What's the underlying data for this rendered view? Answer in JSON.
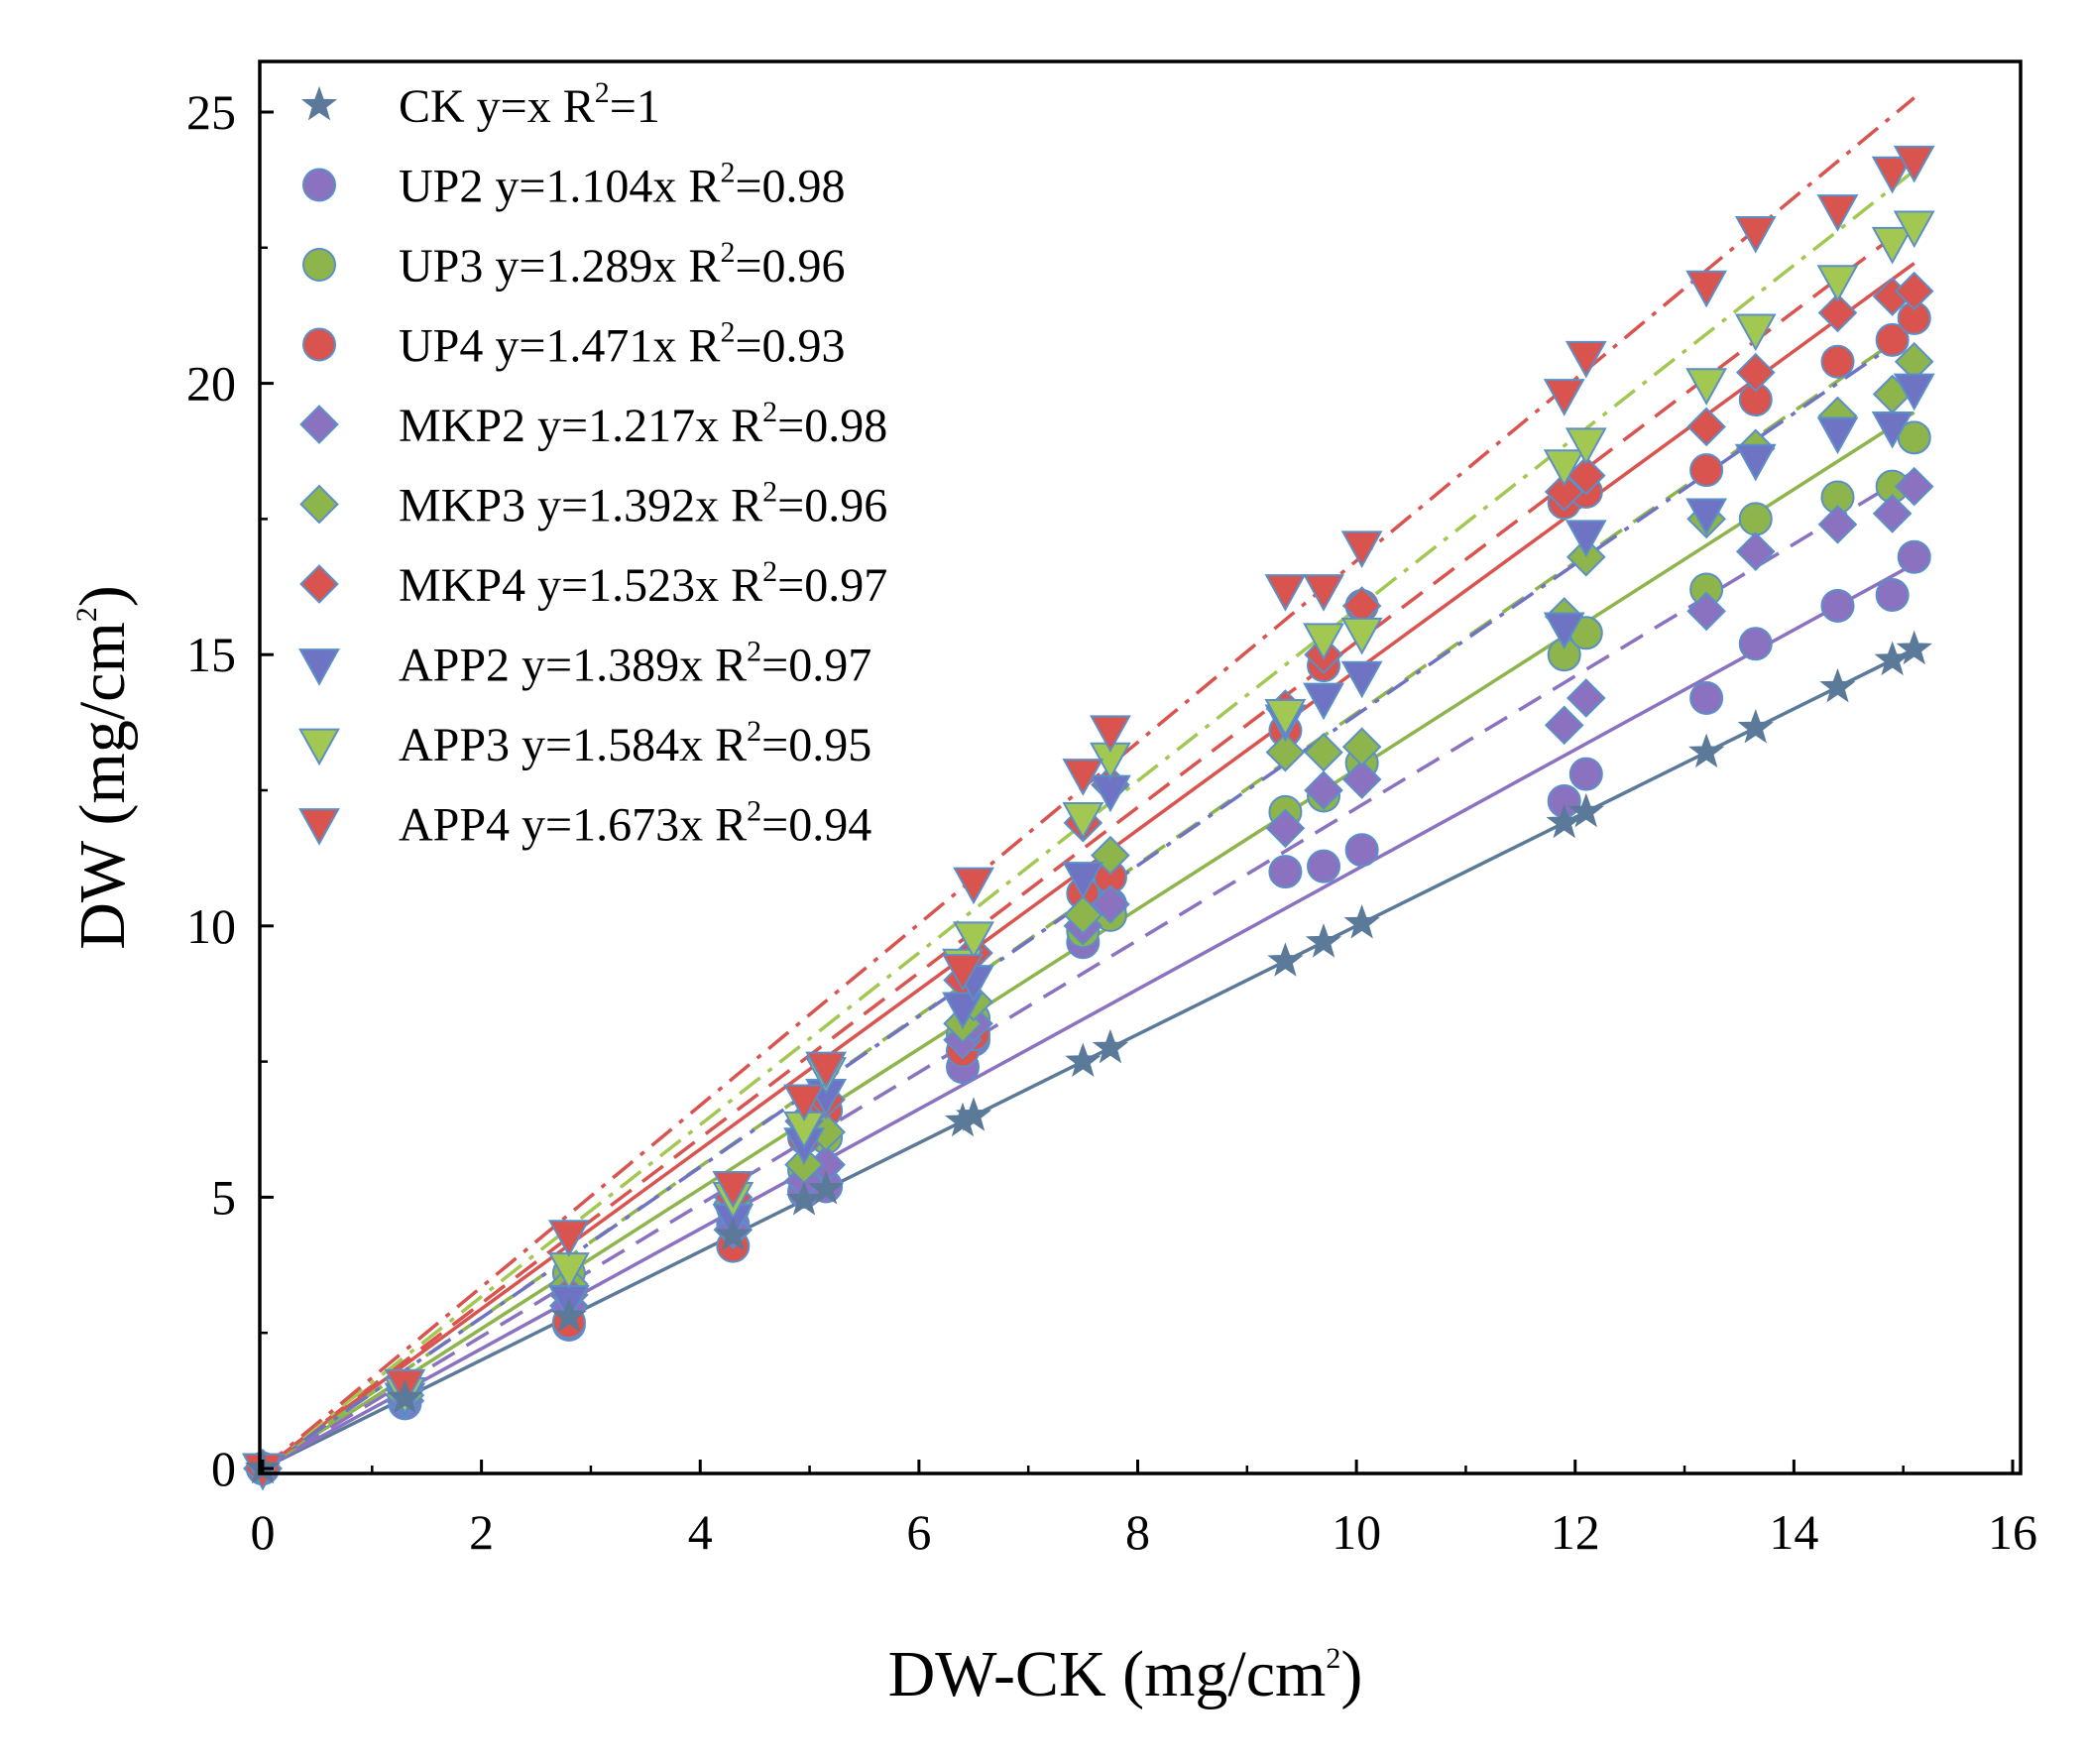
{
  "chart_data": {
    "type": "scatter",
    "xlabel": {
      "main": "DW-CK (mg/cm",
      "sup": "2",
      "end": ")"
    },
    "ylabel": {
      "main": "DW (mg/cm",
      "sup": "2",
      "end": ")"
    },
    "xlim": [
      0,
      16
    ],
    "ylim": [
      0,
      26
    ],
    "xticks": [
      "0",
      "2",
      "4",
      "6",
      "8",
      "10",
      "12",
      "14",
      "16"
    ],
    "yticks": [
      "0",
      "5",
      "10",
      "15",
      "20",
      "25"
    ],
    "legend_position": "top-left",
    "x": [
      0,
      1.3,
      2.8,
      4.3,
      4.95,
      5.15,
      6.4,
      6.5,
      7.5,
      7.75,
      9.35,
      9.7,
      10.05,
      11.9,
      12.1,
      13.2,
      13.65,
      14.4,
      14.9,
      15.1
    ],
    "series": [
      {
        "name": "CK",
        "eq": "y=x",
        "r2": "1",
        "slope": 1.0,
        "color": "#5b7a9a",
        "marker": "star",
        "line": "solid",
        "values": [
          0,
          1.3,
          2.8,
          4.3,
          4.95,
          5.15,
          6.4,
          6.5,
          7.5,
          7.75,
          9.35,
          9.7,
          10.05,
          11.9,
          12.1,
          13.2,
          13.65,
          14.4,
          14.9,
          15.1
        ]
      },
      {
        "name": "UP2",
        "eq": "y=1.104x",
        "r2": "0.98",
        "slope": 1.104,
        "color": "#8b72c0",
        "marker": "circle",
        "line": "solid",
        "values": [
          0,
          1.2,
          2.65,
          4.5,
          5.1,
          5.2,
          7.4,
          7.9,
          9.7,
          10.4,
          11.0,
          11.1,
          11.4,
          12.3,
          12.8,
          14.2,
          15.2,
          15.9,
          16.1,
          16.8
        ]
      },
      {
        "name": "UP3",
        "eq": "y=1.289x",
        "r2": "0.96",
        "slope": 1.289,
        "color": "#8db54b",
        "marker": "circle",
        "line": "solid",
        "values": [
          0,
          1.3,
          3.6,
          4.8,
          5.5,
          6.1,
          8.0,
          8.3,
          9.9,
          10.2,
          12.1,
          12.4,
          13.0,
          15.0,
          15.4,
          16.2,
          17.5,
          17.9,
          18.1,
          19.0
        ]
      },
      {
        "name": "UP4",
        "eq": "y=1.471x",
        "r2": "0.93",
        "slope": 1.471,
        "color": "#d9534f",
        "marker": "circle",
        "line": "solid",
        "values": [
          0,
          1.4,
          2.7,
          4.1,
          6.1,
          6.6,
          7.7,
          8.0,
          10.6,
          10.9,
          13.6,
          14.8,
          15.9,
          17.8,
          18.0,
          18.4,
          19.7,
          20.4,
          20.8,
          21.2
        ]
      },
      {
        "name": "MKP2",
        "eq": "y=1.217x",
        "r2": "0.98",
        "slope": 1.217,
        "color": "#8b72c0",
        "marker": "diamond",
        "line": "dash",
        "values": [
          0,
          1.25,
          3.0,
          4.4,
          5.3,
          5.6,
          7.9,
          8.2,
          10.0,
          10.4,
          11.8,
          12.5,
          12.7,
          13.7,
          14.2,
          15.8,
          16.9,
          17.4,
          17.6,
          18.1
        ]
      },
      {
        "name": "MKP3",
        "eq": "y=1.392x",
        "r2": "0.96",
        "slope": 1.392,
        "color": "#8db54b",
        "marker": "diamond",
        "line": "dash",
        "values": [
          0,
          1.35,
          3.4,
          4.9,
          5.6,
          6.2,
          8.2,
          8.6,
          10.2,
          11.3,
          13.2,
          13.2,
          13.3,
          15.7,
          16.8,
          17.5,
          18.8,
          19.4,
          19.8,
          20.4
        ]
      },
      {
        "name": "MKP4",
        "eq": "y=1.523x",
        "r2": "0.97",
        "slope": 1.523,
        "color": "#d9534f",
        "marker": "diamond",
        "line": "dash",
        "values": [
          0,
          1.45,
          3.2,
          5.0,
          6.4,
          6.8,
          9.0,
          9.5,
          11.9,
          12.6,
          14.0,
          15.0,
          15.9,
          18.0,
          18.3,
          19.2,
          20.2,
          21.3,
          21.6,
          21.7
        ]
      },
      {
        "name": "APP2",
        "eq": "y=1.389x",
        "r2": "0.97",
        "slope": 1.389,
        "color": "#6e73c4",
        "marker": "triangle-down",
        "line": "dashdot",
        "values": [
          0,
          1.3,
          3.1,
          4.6,
          6.0,
          6.9,
          8.5,
          9.0,
          10.9,
          12.5,
          13.8,
          14.2,
          14.6,
          15.5,
          17.2,
          17.6,
          18.6,
          19.1,
          19.2,
          19.9
        ]
      },
      {
        "name": "APP3",
        "eq": "y=1.584x",
        "r2": "0.95",
        "slope": 1.584,
        "color": "#a3c852",
        "marker": "triangle-down",
        "line": "dashdot",
        "values": [
          0,
          1.4,
          3.7,
          5.0,
          6.3,
          7.3,
          9.3,
          9.8,
          12.0,
          13.1,
          13.9,
          15.3,
          15.4,
          18.5,
          18.9,
          20.0,
          21.0,
          21.9,
          22.6,
          22.9
        ]
      },
      {
        "name": "APP4",
        "eq": "y=1.673x",
        "r2": "0.94",
        "slope": 1.673,
        "color": "#d9534f",
        "marker": "triangle-down",
        "line": "dashdot",
        "values": [
          0,
          1.55,
          4.3,
          5.2,
          6.8,
          7.4,
          9.2,
          10.8,
          12.8,
          13.6,
          16.2,
          16.2,
          17.0,
          19.8,
          20.5,
          21.8,
          22.8,
          23.2,
          23.9,
          24.1
        ]
      }
    ]
  }
}
